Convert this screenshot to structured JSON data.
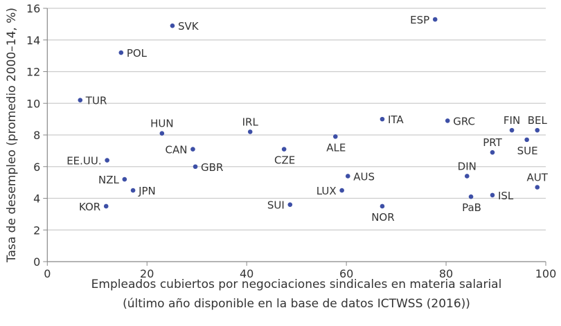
{
  "chart_data": {
    "type": "scatter",
    "title": "",
    "xlabel_lines": [
      "Empleados cubiertos por negociaciones sindicales en materia salarial",
      "(último año disponible en la base de datos ICTWSS (2016))"
    ],
    "ylabel": "Tasa de desempleo (promedio 2000–14, %)",
    "xlim": [
      0,
      100
    ],
    "ylim": [
      0,
      16
    ],
    "xticks": [
      0,
      20,
      40,
      60,
      80,
      100
    ],
    "yticks": [
      0,
      2,
      4,
      6,
      8,
      10,
      12,
      14,
      16
    ],
    "grid": "horizontal",
    "colors": {
      "point": "#3d4fa6",
      "grid": "#cccccc",
      "axis": "#888888"
    },
    "points": [
      {
        "label": "SVK",
        "x": 25.1,
        "y": 14.9
      },
      {
        "label": "ESP",
        "x": 77.8,
        "y": 15.3
      },
      {
        "label": "POL",
        "x": 14.8,
        "y": 13.2
      },
      {
        "label": "TUR",
        "x": 6.6,
        "y": 10.2
      },
      {
        "label": "HUN",
        "x": 23.0,
        "y": 8.1
      },
      {
        "label": "IRL",
        "x": 40.7,
        "y": 8.2
      },
      {
        "label": "CAN",
        "x": 29.2,
        "y": 7.1
      },
      {
        "label": "CZE",
        "x": 47.5,
        "y": 7.1
      },
      {
        "label": "EE.UU.",
        "x": 12.0,
        "y": 6.4
      },
      {
        "label": "GBR",
        "x": 29.7,
        "y": 6.0
      },
      {
        "label": "NZL",
        "x": 15.5,
        "y": 5.2
      },
      {
        "label": "JPN",
        "x": 17.2,
        "y": 4.5
      },
      {
        "label": "KOR",
        "x": 11.8,
        "y": 3.5
      },
      {
        "label": "SUI",
        "x": 48.7,
        "y": 3.6
      },
      {
        "label": "ITA",
        "x": 67.2,
        "y": 9.0
      },
      {
        "label": "GRC",
        "x": 80.3,
        "y": 8.9
      },
      {
        "label": "FIN",
        "x": 93.2,
        "y": 8.3
      },
      {
        "label": "BEL",
        "x": 98.3,
        "y": 8.3
      },
      {
        "label": "ALE",
        "x": 57.8,
        "y": 7.9
      },
      {
        "label": "SUE",
        "x": 96.2,
        "y": 7.7
      },
      {
        "label": "PRT",
        "x": 89.3,
        "y": 6.9
      },
      {
        "label": "AUS",
        "x": 60.3,
        "y": 5.4
      },
      {
        "label": "DIN",
        "x": 84.2,
        "y": 5.4
      },
      {
        "label": "LUX",
        "x": 59.1,
        "y": 4.5
      },
      {
        "label": "AUT",
        "x": 98.3,
        "y": 4.7
      },
      {
        "label": "ISL",
        "x": 89.3,
        "y": 4.2
      },
      {
        "label": "PaB",
        "x": 85.0,
        "y": 4.1
      },
      {
        "label": "NOR",
        "x": 67.2,
        "y": 3.5
      }
    ]
  }
}
